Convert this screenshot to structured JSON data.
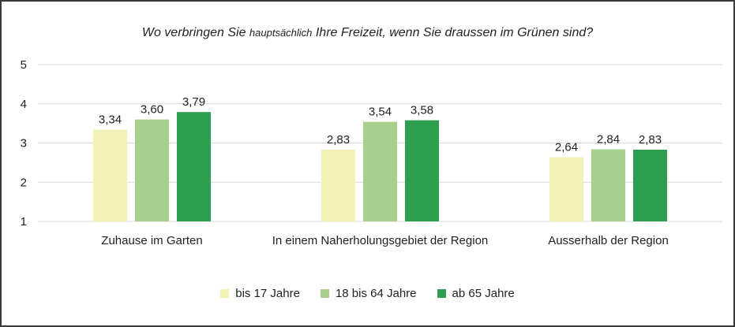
{
  "chart_data": {
    "type": "bar",
    "title_parts": [
      "Wo verbringen Sie ",
      "hauptsächlich",
      " Ihre Freizeit, wenn Sie draussen im Grünen sind?"
    ],
    "categories": [
      "Zuhause im Garten",
      "In einem Naherholungsgebiet der Region",
      "Ausserhalb der Region"
    ],
    "series": [
      {
        "name": "bis 17 Jahre",
        "color": "#f2f0b5",
        "values": [
          3.34,
          2.83,
          2.64
        ],
        "labels": [
          "3,34",
          "2,83",
          "2,64"
        ]
      },
      {
        "name": "18 bis 64 Jahre",
        "color": "#a8d08d",
        "values": [
          3.6,
          3.54,
          2.84
        ],
        "labels": [
          "3,60",
          "3,54",
          "2,84"
        ]
      },
      {
        "name": "ab 65 Jahre",
        "color": "#2e9e4f",
        "values": [
          3.79,
          3.58,
          2.83
        ],
        "labels": [
          "3,79",
          "3,58",
          "2,83"
        ]
      }
    ],
    "ylim": [
      1,
      5
    ],
    "yticks": [
      "1",
      "2",
      "3",
      "4",
      "5"
    ],
    "grid": true,
    "legend_position": "bottom"
  }
}
